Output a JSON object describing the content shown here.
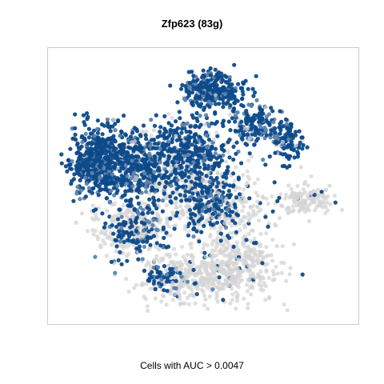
{
  "chart_data": {
    "type": "scatter",
    "title": "Zfp623 (83g)",
    "xlabel": "Cells with AUC > 0.0047",
    "ylabel": "",
    "grid": false,
    "legend": "none",
    "colors": {
      "low": "#d4d4d4",
      "high": "#0d4a8a",
      "mid": "#5d83ad",
      "frame": "#cccccc"
    },
    "series": [
      {
        "name": "",
        "role": "background-cells",
        "clusters": [
          {
            "cx": 0.46,
            "cy": 0.86,
            "rx": 0.16,
            "ry": 0.09,
            "n": 380,
            "hi": 0.08
          },
          {
            "cx": 0.63,
            "cy": 0.8,
            "rx": 0.12,
            "ry": 0.12,
            "n": 320,
            "hi": 0.06
          },
          {
            "cx": 0.25,
            "cy": 0.68,
            "rx": 0.12,
            "ry": 0.1,
            "n": 200,
            "hi": 0.1
          },
          {
            "cx": 0.53,
            "cy": 0.57,
            "rx": 0.18,
            "ry": 0.1,
            "n": 280,
            "hi": 0.1
          },
          {
            "cx": 0.85,
            "cy": 0.56,
            "rx": 0.08,
            "ry": 0.06,
            "n": 140,
            "hi": 0.08
          },
          {
            "cx": 0.38,
            "cy": 0.45,
            "rx": 0.2,
            "ry": 0.1,
            "n": 220,
            "hi": 0.08
          }
        ]
      },
      {
        "name": "",
        "role": "auc-positive-cells",
        "clusters": [
          {
            "cx": 0.14,
            "cy": 0.4,
            "rx": 0.09,
            "ry": 0.13,
            "n": 520,
            "hi": 1.0
          },
          {
            "cx": 0.28,
            "cy": 0.42,
            "rx": 0.09,
            "ry": 0.12,
            "n": 300,
            "hi": 0.95
          },
          {
            "cx": 0.44,
            "cy": 0.38,
            "rx": 0.16,
            "ry": 0.14,
            "n": 420,
            "hi": 0.92
          },
          {
            "cx": 0.53,
            "cy": 0.57,
            "rx": 0.1,
            "ry": 0.12,
            "n": 220,
            "hi": 0.85
          },
          {
            "cx": 0.53,
            "cy": 0.13,
            "rx": 0.09,
            "ry": 0.07,
            "n": 300,
            "hi": 0.97
          },
          {
            "cx": 0.67,
            "cy": 0.26,
            "rx": 0.08,
            "ry": 0.07,
            "n": 160,
            "hi": 0.9
          },
          {
            "cx": 0.79,
            "cy": 0.33,
            "rx": 0.05,
            "ry": 0.07,
            "n": 110,
            "hi": 0.95
          },
          {
            "cx": 0.28,
            "cy": 0.68,
            "rx": 0.1,
            "ry": 0.09,
            "n": 140,
            "hi": 0.85
          },
          {
            "cx": 0.36,
            "cy": 0.86,
            "rx": 0.06,
            "ry": 0.05,
            "n": 50,
            "hi": 0.9
          }
        ]
      }
    ]
  }
}
